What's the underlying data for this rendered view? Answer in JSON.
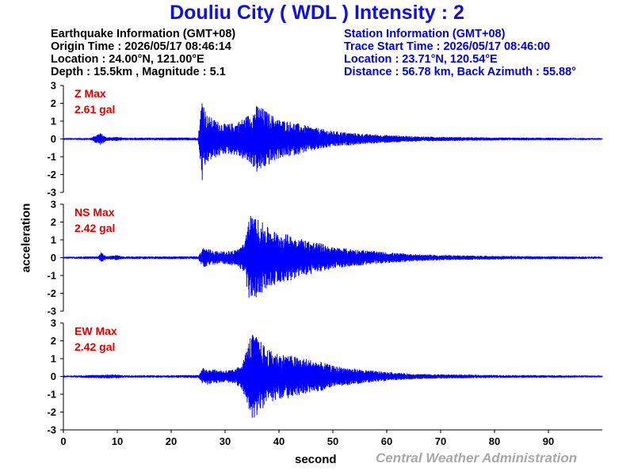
{
  "header": {
    "title": "Douliu City ( WDL ) Intensity : 2",
    "earthquake": {
      "heading": "Earthquake Information (GMT+08)",
      "origin_time": "Origin Time : 2026/05/17 08:46:14",
      "location": "Location : 24.00°N, 121.00°E",
      "depth_magnitude": "Depth : 15.5km , Magnitude : 5.1"
    },
    "station": {
      "heading": "Station Information (GMT+08)",
      "trace_start": "Trace Start Time : 2026/05/17 08:46:00",
      "location": "Location : 23.71°N, 120.54°E",
      "distance": "Distance : 56.78 km, Back Azimuth : 55.88°"
    }
  },
  "footer": {
    "brand": "Central Weather Administration"
  },
  "colors": {
    "title": "#1010e0",
    "trace": "#0000ff",
    "max_label": "#e00000",
    "brand": "#a8a8a8"
  },
  "chart_data": {
    "type": "line",
    "xlabel": "second",
    "ylabel": "acceleration",
    "xlim": [
      0,
      100
    ],
    "xticks": [
      0,
      10,
      20,
      30,
      40,
      50,
      60,
      70,
      80,
      90
    ],
    "ylim": [
      -3,
      3
    ],
    "yticks": [
      3,
      2,
      1,
      0,
      -1,
      -2,
      -3
    ],
    "panels": [
      {
        "component": "Z",
        "max_label": "Z Max",
        "max_value": "2.61 gal",
        "envelope": [
          [
            0,
            0.05
          ],
          [
            5,
            0.06
          ],
          [
            6.8,
            0.35
          ],
          [
            8,
            0.1
          ],
          [
            10,
            0.12
          ],
          [
            11,
            0.07
          ],
          [
            25,
            0.08
          ],
          [
            25.8,
            2.61
          ],
          [
            26.5,
            1.4
          ],
          [
            28,
            1.1
          ],
          [
            30,
            0.85
          ],
          [
            32,
            0.9
          ],
          [
            33.5,
            1.2
          ],
          [
            35,
            1.5
          ],
          [
            36,
            1.95
          ],
          [
            38,
            1.5
          ],
          [
            40,
            1.1
          ],
          [
            42,
            1.0
          ],
          [
            45,
            0.75
          ],
          [
            50,
            0.45
          ],
          [
            55,
            0.3
          ],
          [
            60,
            0.22
          ],
          [
            65,
            0.15
          ],
          [
            70,
            0.12
          ],
          [
            80,
            0.08
          ],
          [
            90,
            0.07
          ],
          [
            100,
            0.05
          ]
        ]
      },
      {
        "component": "NS",
        "max_label": "NS Max",
        "max_value": "2.42 gal",
        "envelope": [
          [
            0,
            0.05
          ],
          [
            6.5,
            0.08
          ],
          [
            7,
            0.3
          ],
          [
            8,
            0.08
          ],
          [
            10,
            0.15
          ],
          [
            11,
            0.07
          ],
          [
            25,
            0.08
          ],
          [
            26,
            0.6
          ],
          [
            28,
            0.4
          ],
          [
            30,
            0.35
          ],
          [
            32,
            0.45
          ],
          [
            33.5,
            0.8
          ],
          [
            34.5,
            2.42
          ],
          [
            36,
            2.2
          ],
          [
            38,
            1.7
          ],
          [
            40,
            1.4
          ],
          [
            42,
            1.3
          ],
          [
            45,
            1.0
          ],
          [
            48,
            0.8
          ],
          [
            50,
            0.6
          ],
          [
            55,
            0.45
          ],
          [
            60,
            0.3
          ],
          [
            65,
            0.2
          ],
          [
            70,
            0.15
          ],
          [
            80,
            0.1
          ],
          [
            90,
            0.08
          ],
          [
            100,
            0.06
          ]
        ]
      },
      {
        "component": "EW",
        "max_label": "EW Max",
        "max_value": "2.42 gal",
        "envelope": [
          [
            0,
            0.04
          ],
          [
            10,
            0.12
          ],
          [
            11,
            0.06
          ],
          [
            25,
            0.08
          ],
          [
            26,
            0.5
          ],
          [
            28,
            0.4
          ],
          [
            30,
            0.35
          ],
          [
            32,
            0.4
          ],
          [
            33.5,
            1.0
          ],
          [
            34.8,
            2.42
          ],
          [
            36,
            2.2
          ],
          [
            38,
            1.5
          ],
          [
            40,
            1.3
          ],
          [
            42,
            1.2
          ],
          [
            45,
            1.0
          ],
          [
            48,
            0.8
          ],
          [
            50,
            0.6
          ],
          [
            55,
            0.4
          ],
          [
            60,
            0.25
          ],
          [
            65,
            0.15
          ],
          [
            70,
            0.12
          ],
          [
            80,
            0.08
          ],
          [
            90,
            0.07
          ],
          [
            100,
            0.05
          ]
        ]
      }
    ]
  }
}
